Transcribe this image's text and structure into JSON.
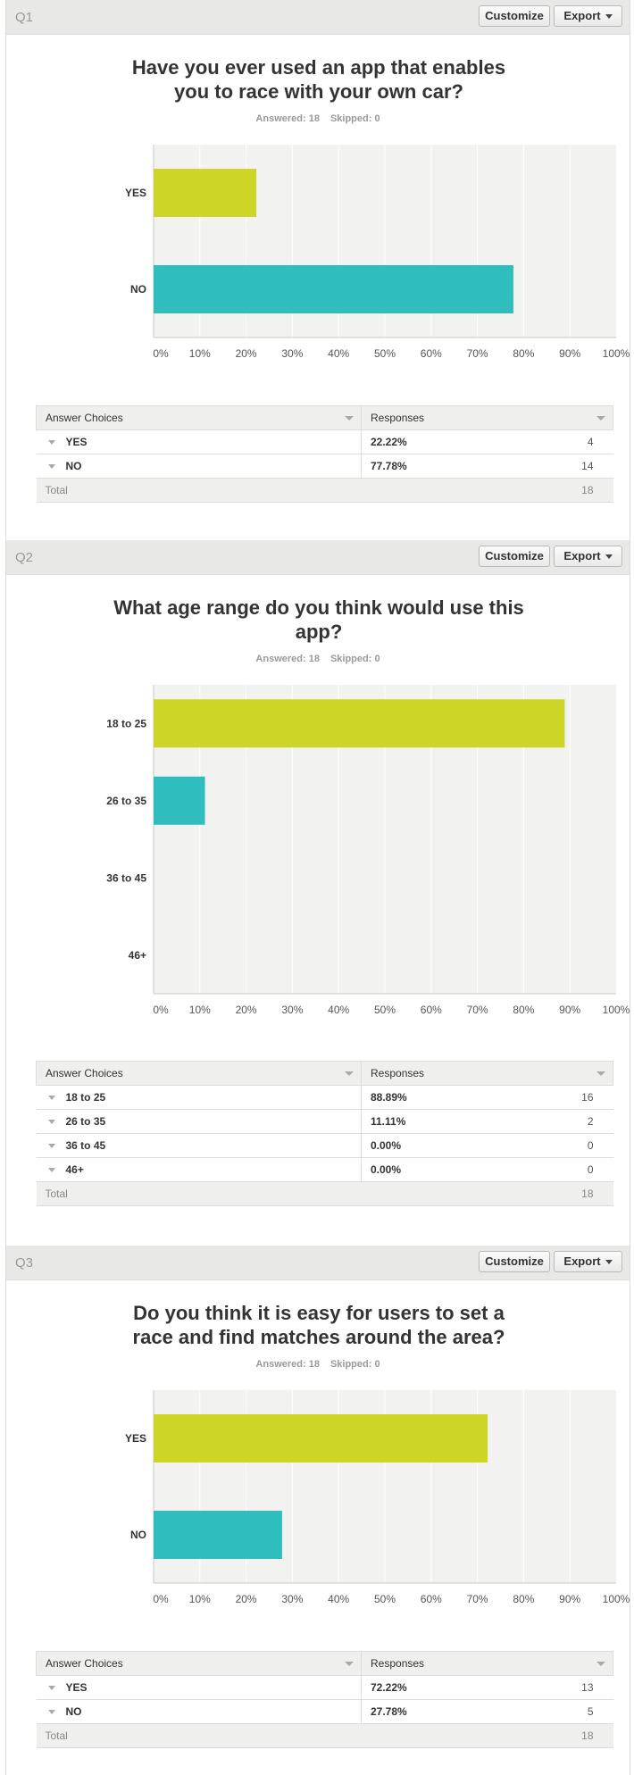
{
  "buttons": {
    "customize": "Customize",
    "export": "Export"
  },
  "colors": {
    "series": [
      "#cdd626",
      "#2fbdbe"
    ],
    "plot_bg": "#f2f2f0",
    "grid": "#ffffff"
  },
  "axis_ticks": [
    "0%",
    "10%",
    "20%",
    "30%",
    "40%",
    "50%",
    "60%",
    "70%",
    "80%",
    "90%",
    "100%"
  ],
  "table_headers": {
    "choices": "Answer Choices",
    "responses": "Responses",
    "total": "Total"
  },
  "questions": [
    {
      "num": "Q1",
      "title_lines": [
        "Have you ever used an app that enables",
        "you to race with your own car?"
      ],
      "answered": "Answered: 18",
      "skipped": "Skipped: 0",
      "rows": [
        {
          "label": "YES",
          "pct": "22.22%",
          "count": "4"
        },
        {
          "label": "NO",
          "pct": "77.78%",
          "count": "14"
        }
      ],
      "total": "18"
    },
    {
      "num": "Q2",
      "title_lines": [
        "What age range do you think would use this",
        "app?"
      ],
      "answered": "Answered: 18",
      "skipped": "Skipped: 0",
      "rows": [
        {
          "label": "18 to 25",
          "pct": "88.89%",
          "count": "16"
        },
        {
          "label": "26 to 35",
          "pct": "11.11%",
          "count": "2"
        },
        {
          "label": "36 to 45",
          "pct": "0.00%",
          "count": "0"
        },
        {
          "label": "46+",
          "pct": "0.00%",
          "count": "0"
        }
      ],
      "total": "18"
    },
    {
      "num": "Q3",
      "title_lines": [
        "Do you think it is easy for users to set a",
        "race and find matches around the area?"
      ],
      "answered": "Answered: 18",
      "skipped": "Skipped: 0",
      "rows": [
        {
          "label": "YES",
          "pct": "72.22%",
          "count": "13"
        },
        {
          "label": "NO",
          "pct": "27.78%",
          "count": "5"
        }
      ],
      "total": "18"
    }
  ],
  "chart_data": [
    {
      "type": "bar",
      "orientation": "horizontal",
      "categories": [
        "YES",
        "NO"
      ],
      "values": [
        22.22,
        77.78
      ],
      "xlim": [
        0,
        100
      ],
      "grid": true
    },
    {
      "type": "bar",
      "orientation": "horizontal",
      "categories": [
        "18 to 25",
        "26 to 35",
        "36 to 45",
        "46+"
      ],
      "values": [
        88.89,
        11.11,
        0,
        0
      ],
      "xlim": [
        0,
        100
      ],
      "grid": true
    },
    {
      "type": "bar",
      "orientation": "horizontal",
      "categories": [
        "YES",
        "NO"
      ],
      "values": [
        72.22,
        27.78
      ],
      "xlim": [
        0,
        100
      ],
      "grid": true
    }
  ]
}
